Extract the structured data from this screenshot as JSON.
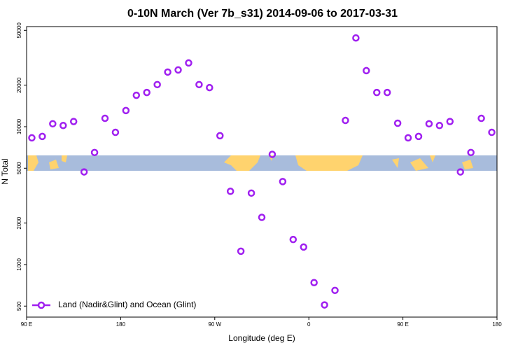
{
  "chart_data": {
    "type": "scatter",
    "title": "0-10N March (Ver 7b_s31)   2014-09-06 to 2017-03-31",
    "x_label": "Longitude (deg E)",
    "y_label": "N Total",
    "x": [
      95,
      105,
      115,
      125,
      135,
      145,
      155,
      165,
      175,
      185,
      195,
      205,
      215,
      225,
      235,
      245,
      255,
      265,
      275,
      285,
      295,
      305,
      315,
      325,
      335,
      345,
      355,
      365,
      375,
      385,
      395,
      405,
      415,
      425,
      435,
      445,
      455,
      465,
      475,
      485,
      495,
      505,
      515,
      525,
      535
    ],
    "series": [
      {
        "name": "Land (Nadir&Glint) and Ocean (Glint)",
        "color": "#a020f0",
        "values": [
          8300,
          8500,
          10500,
          10200,
          10900,
          4700,
          6500,
          11500,
          9100,
          13100,
          16900,
          17700,
          20200,
          24900,
          25800,
          29000,
          20200,
          19200,
          8600,
          3400,
          1250,
          3300,
          2200,
          6300,
          4000,
          1520,
          1340,
          740,
          510,
          650,
          11100,
          44000,
          25500,
          17700,
          17700,
          10600,
          8300,
          8500,
          10500,
          10200,
          10900,
          4700,
          6500,
          11500,
          9100
        ]
      }
    ],
    "xlim": [
      90,
      540
    ],
    "xticks": [
      {
        "value": 90,
        "label": "90 E"
      },
      180,
      {
        "value": 270,
        "label": "90 W"
      },
      {
        "value": 360,
        "label": "0"
      },
      {
        "value": 450,
        "label": "90 E"
      },
      {
        "value": 540,
        "label": "180"
      }
    ],
    "ylim": [
      416,
      53200
    ],
    "yticks": [
      500,
      1000,
      2000,
      5000,
      10000,
      20000,
      50000
    ],
    "log_y": true,
    "legend": "bottom-left"
  }
}
